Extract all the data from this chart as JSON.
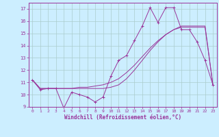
{
  "xlabel": "Windchill (Refroidissement éolien,°C)",
  "background_color": "#cceeff",
  "grid_color": "#aacccc",
  "line_color": "#993399",
  "x_data": [
    0,
    1,
    2,
    3,
    4,
    5,
    6,
    7,
    8,
    9,
    10,
    11,
    12,
    13,
    14,
    15,
    16,
    17,
    18,
    19,
    20,
    21,
    22,
    23
  ],
  "y_main": [
    11.2,
    10.4,
    10.5,
    10.5,
    8.9,
    10.2,
    10.0,
    9.8,
    9.4,
    9.8,
    11.5,
    12.8,
    13.2,
    14.4,
    15.6,
    17.1,
    15.9,
    17.1,
    17.1,
    15.3,
    15.3,
    14.3,
    12.8,
    10.8
  ],
  "y_line2": [
    11.2,
    10.5,
    10.5,
    10.5,
    10.5,
    10.5,
    10.6,
    10.6,
    10.7,
    10.8,
    11.0,
    11.3,
    11.8,
    12.4,
    13.1,
    13.8,
    14.4,
    14.9,
    15.3,
    15.5,
    15.5,
    15.5,
    15.5,
    10.8
  ],
  "y_line3": [
    11.2,
    10.5,
    10.5,
    10.5,
    10.5,
    10.5,
    10.5,
    10.5,
    10.5,
    10.5,
    10.6,
    10.8,
    11.3,
    12.0,
    12.8,
    13.6,
    14.3,
    14.9,
    15.3,
    15.6,
    15.6,
    15.6,
    15.6,
    10.8
  ],
  "ylim": [
    9,
    17.5
  ],
  "xlim": [
    -0.5,
    23.5
  ],
  "yticks": [
    9,
    10,
    11,
    12,
    13,
    14,
    15,
    16,
    17
  ],
  "xticks": [
    0,
    1,
    2,
    3,
    4,
    5,
    6,
    7,
    8,
    9,
    10,
    11,
    12,
    13,
    14,
    15,
    16,
    17,
    18,
    19,
    20,
    21,
    22,
    23
  ]
}
